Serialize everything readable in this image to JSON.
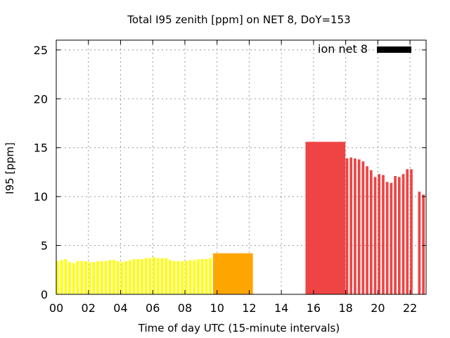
{
  "chart_data": {
    "type": "bar",
    "title": "Total I95 zenith [ppm] on NET 8, DoY=153",
    "xlabel": "Time of day UTC (15-minute intervals)",
    "ylabel": "I95 [ppm]",
    "xlim": [
      0,
      23
    ],
    "ylim": [
      0,
      26
    ],
    "x_ticks": [
      0,
      2,
      4,
      6,
      8,
      10,
      12,
      14,
      16,
      18,
      20,
      22
    ],
    "x_tick_labels": [
      "00",
      "02",
      "04",
      "06",
      "08",
      "10",
      "12",
      "14",
      "16",
      "18",
      "20",
      "22"
    ],
    "y_ticks": [
      0,
      5,
      10,
      15,
      20,
      25
    ],
    "y_tick_labels": [
      "0",
      "5",
      "10",
      "15",
      "20",
      "25"
    ],
    "grid": true,
    "legend": {
      "label": "ion net 8",
      "position": "top-right",
      "color": "#000000"
    },
    "colors": {
      "yellow": "#ffff00",
      "orange": "#ffa500",
      "red": "#ef4444"
    },
    "series": [
      {
        "color": "yellow",
        "width_hours": 0.25,
        "start_hour": 0,
        "values": [
          3.4,
          3.5,
          3.6,
          3.3,
          3.2,
          3.4,
          3.4,
          3.4,
          3.3,
          3.3,
          3.4,
          3.4,
          3.4,
          3.5,
          3.5,
          3.4,
          3.3,
          3.4,
          3.5,
          3.6,
          3.6,
          3.6,
          3.7,
          3.7,
          3.8,
          3.7,
          3.7,
          3.7,
          3.5,
          3.4,
          3.4,
          3.4,
          3.4,
          3.5,
          3.5,
          3.6,
          3.6,
          3.6,
          3.7,
          3.9
        ]
      },
      {
        "color": "orange",
        "bars": [
          {
            "start_hour": 9.75,
            "end_hour": 12.25,
            "value": 4.2
          }
        ]
      },
      {
        "color": "red",
        "bars": [
          {
            "start_hour": 15.5,
            "end_hour": 18.0,
            "value": 15.6
          }
        ]
      },
      {
        "color": "red",
        "width_hours": 0.25,
        "start_hour": 18.0,
        "values": [
          13.9,
          14.0,
          13.9,
          13.8,
          13.6,
          13.1,
          12.7,
          12.0,
          12.3,
          12.2,
          11.5,
          11.4,
          12.1,
          12.0,
          12.3,
          12.8,
          12.8,
          null,
          10.5,
          10.2
        ]
      }
    ]
  }
}
